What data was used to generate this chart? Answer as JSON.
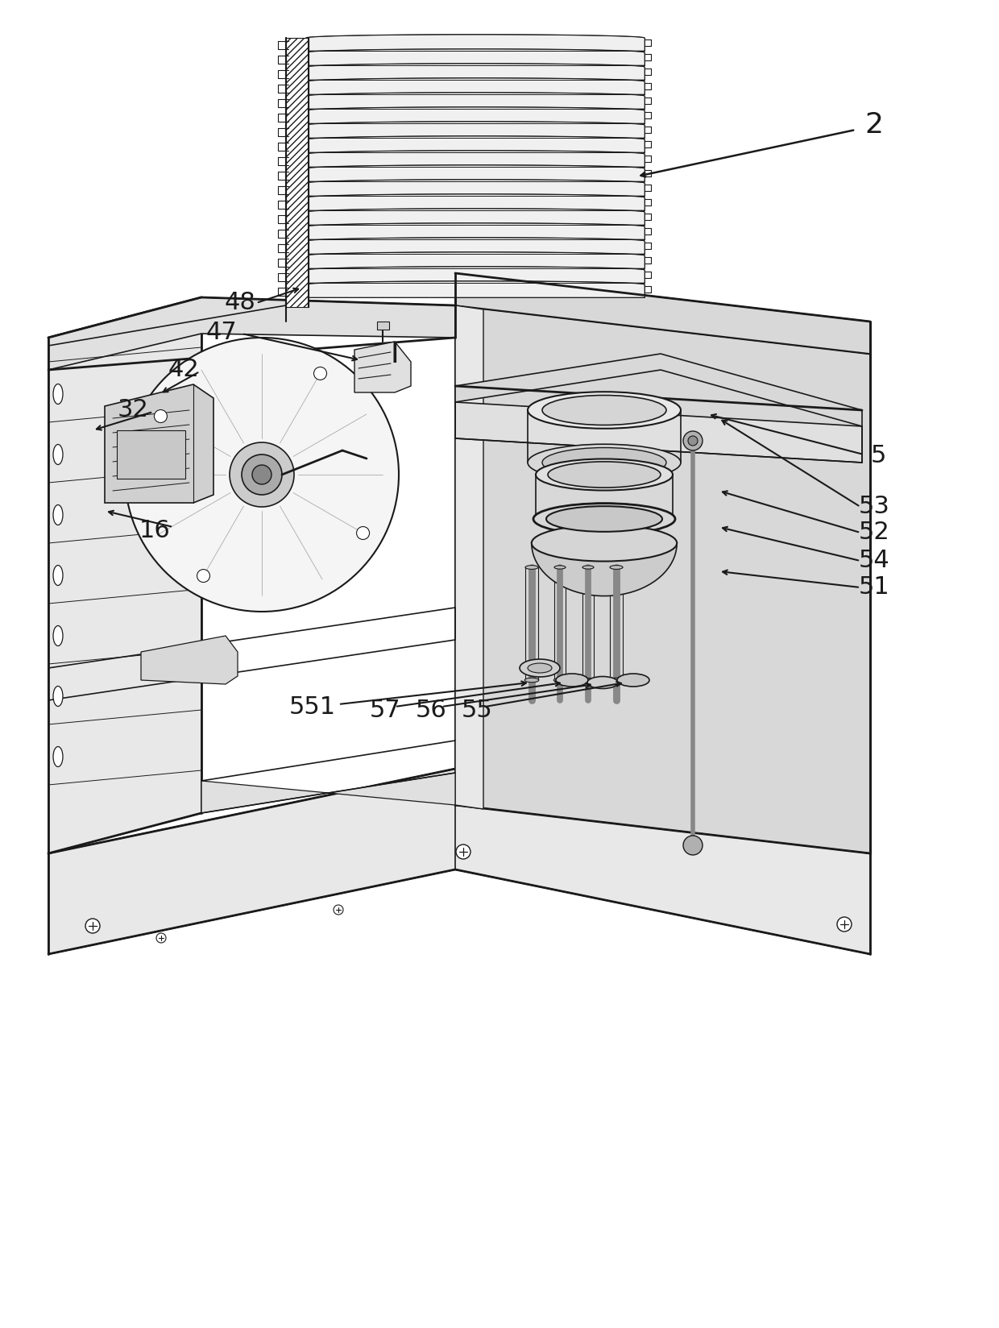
{
  "fig_width": 12.4,
  "fig_height": 16.49,
  "dpi": 100,
  "bg_color": "#ffffff",
  "line_color": "#1a1a1a"
}
